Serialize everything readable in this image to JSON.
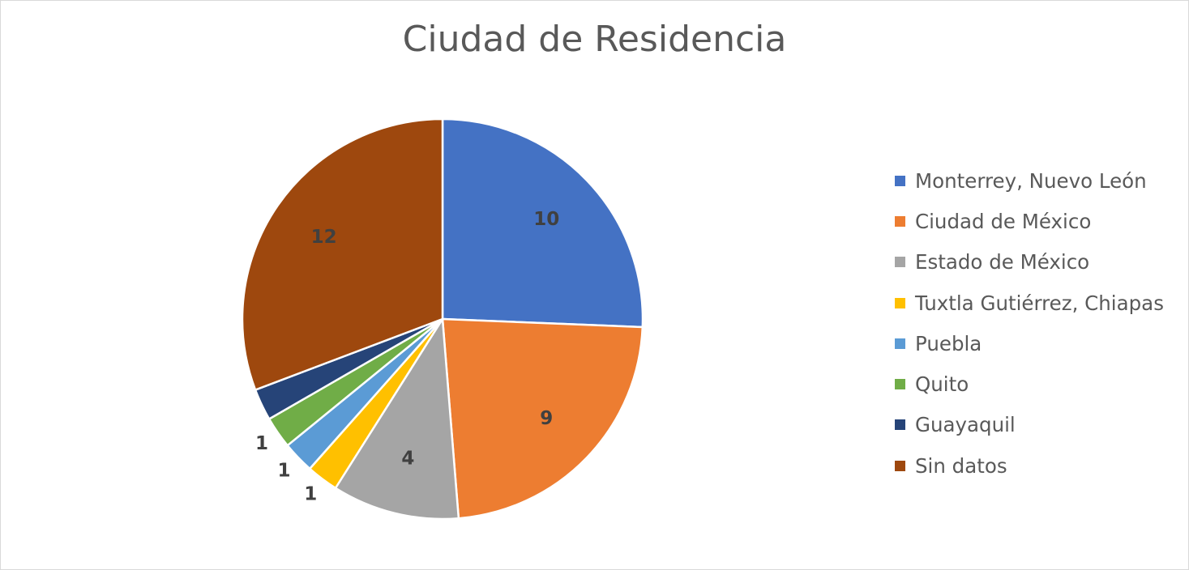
{
  "chart_data": {
    "type": "pie",
    "title": "Ciudad de Residencia",
    "categories": [
      "Monterrey, Nuevo León",
      "Ciudad de México",
      "Estado de México",
      "Tuxtla Gutiérrez, Chiapas",
      "Puebla",
      "Quito",
      "Guayaquil",
      "Sin datos"
    ],
    "values": [
      10,
      9,
      4,
      1,
      1,
      1,
      1,
      12
    ],
    "data_labels": [
      "10",
      "9",
      "4",
      "1",
      "1",
      "1",
      "",
      "12"
    ],
    "colors": [
      "#4472c4",
      "#ed7d31",
      "#a5a5a5",
      "#ffc000",
      "#5b9bd5",
      "#70ad47",
      "#264478",
      "#9e480e"
    ],
    "legend_position": "right"
  }
}
